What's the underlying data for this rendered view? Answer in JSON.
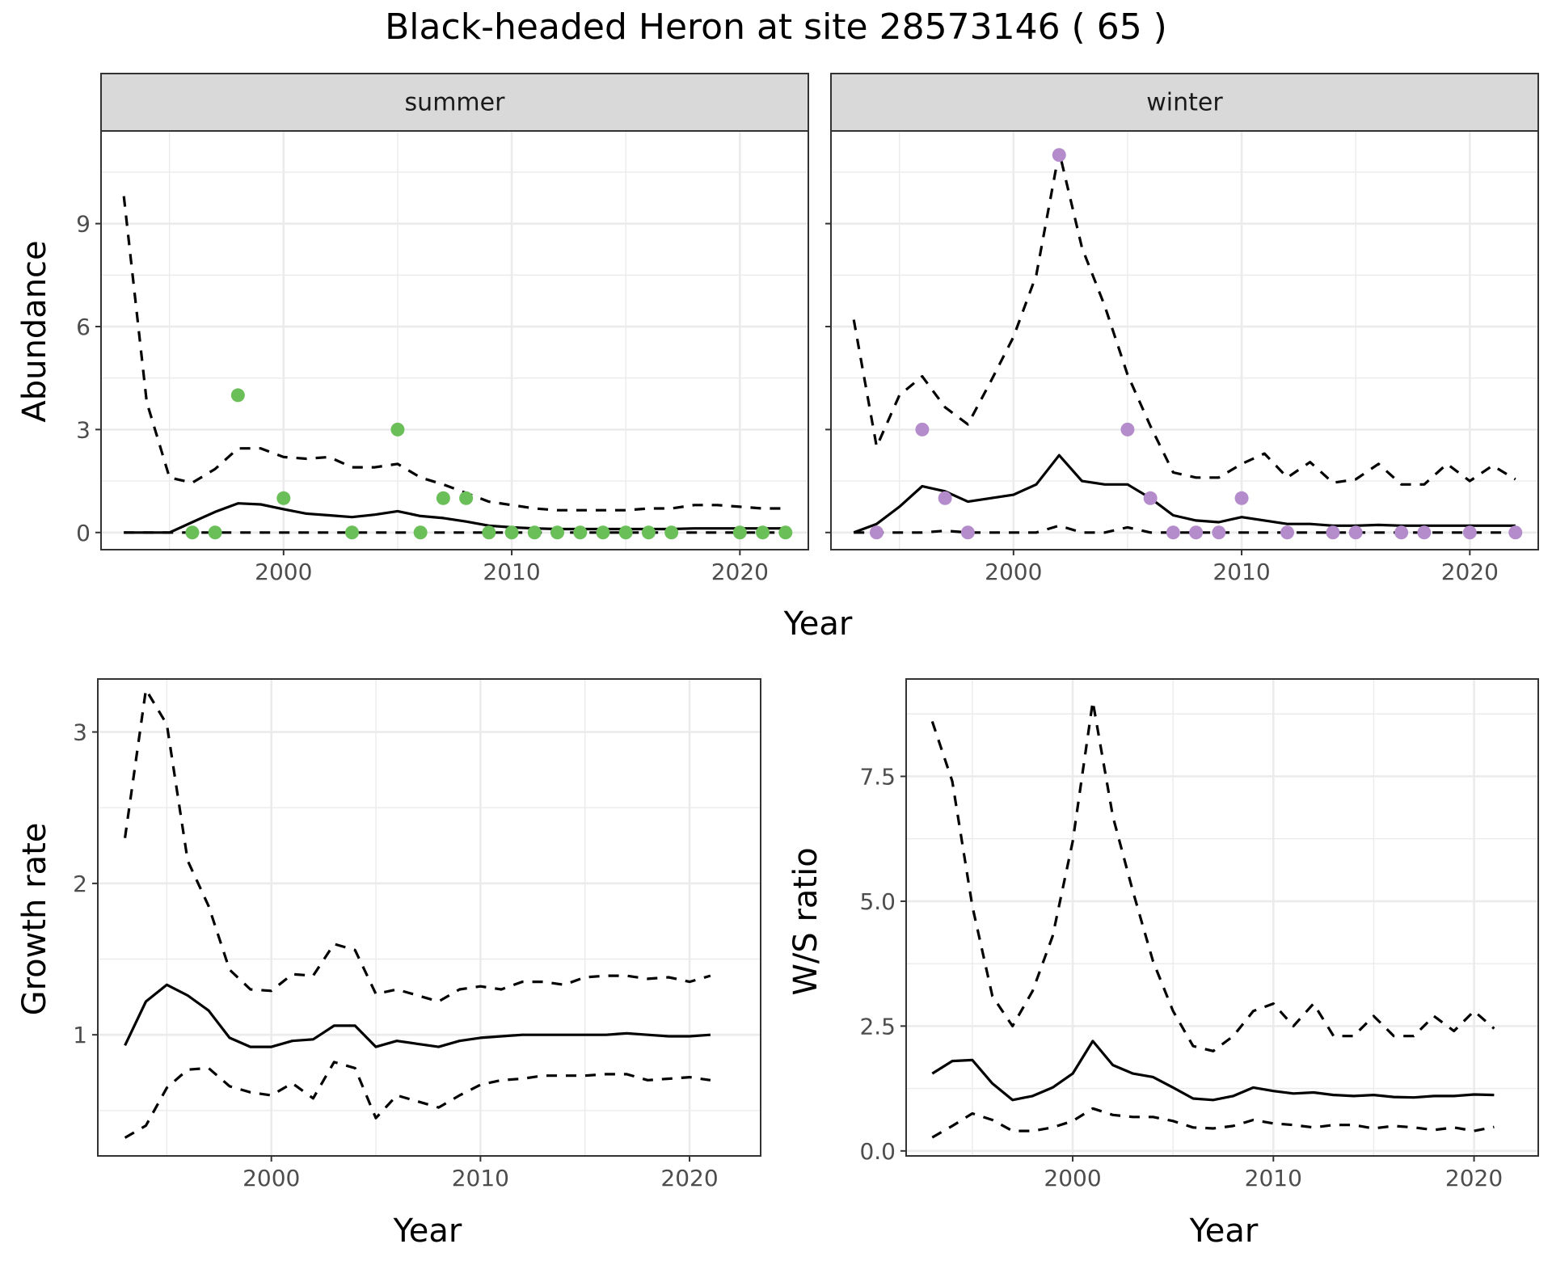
{
  "title": "Black-headed Heron at site 28573146 ( 65 )",
  "colors": {
    "summer_points": "#6bbf59",
    "winter_points": "#b48ccc",
    "lines": "#000000"
  },
  "chart_data": [
    {
      "id": "summer",
      "type": "line",
      "facet_label": "summer",
      "xlabel": "Year",
      "ylabel": "Abundance",
      "xlim": [
        1992,
        2023
      ],
      "ylim": [
        -0.5,
        11.7
      ],
      "xticks": [
        2000,
        2010,
        2020
      ],
      "yticks": [
        0,
        3,
        6,
        9
      ],
      "x": [
        1993,
        1994,
        1995,
        1996,
        1997,
        1998,
        1999,
        2000,
        2001,
        2002,
        2003,
        2004,
        2005,
        2006,
        2007,
        2008,
        2009,
        2010,
        2011,
        2012,
        2013,
        2014,
        2015,
        2016,
        2017,
        2018,
        2019,
        2020,
        2021,
        2022
      ],
      "series": [
        {
          "role": "estimate",
          "values": [
            0,
            0,
            0,
            0.3,
            0.6,
            0.85,
            0.82,
            0.68,
            0.55,
            0.5,
            0.45,
            0.52,
            0.62,
            0.48,
            0.42,
            0.32,
            0.2,
            0.15,
            0.12,
            0.1,
            0.1,
            0.1,
            0.1,
            0.1,
            0.1,
            0.12,
            0.12,
            0.12,
            0.12,
            0.12
          ]
        },
        {
          "role": "upper",
          "values": [
            9.8,
            3.8,
            1.6,
            1.45,
            1.85,
            2.45,
            2.45,
            2.2,
            2.15,
            2.2,
            1.9,
            1.9,
            2,
            1.6,
            1.4,
            1.15,
            0.9,
            0.8,
            0.7,
            0.65,
            0.65,
            0.65,
            0.65,
            0.7,
            0.7,
            0.8,
            0.8,
            0.75,
            0.7,
            0.7
          ]
        },
        {
          "role": "lower",
          "values": [
            0,
            0,
            0,
            0,
            0,
            0,
            0,
            0,
            0,
            0,
            0,
            0,
            0,
            0,
            0,
            0,
            0,
            0,
            0,
            0,
            0,
            0,
            0,
            0,
            0,
            0,
            0,
            0,
            0,
            0
          ]
        }
      ],
      "points": [
        {
          "x": 1996,
          "y": 0
        },
        {
          "x": 1997,
          "y": 0
        },
        {
          "x": 1998,
          "y": 4
        },
        {
          "x": 2000,
          "y": 1
        },
        {
          "x": 2003,
          "y": 0
        },
        {
          "x": 2005,
          "y": 3
        },
        {
          "x": 2006,
          "y": 0
        },
        {
          "x": 2007,
          "y": 1
        },
        {
          "x": 2008,
          "y": 1
        },
        {
          "x": 2009,
          "y": 0
        },
        {
          "x": 2010,
          "y": 0
        },
        {
          "x": 2011,
          "y": 0
        },
        {
          "x": 2012,
          "y": 0
        },
        {
          "x": 2013,
          "y": 0
        },
        {
          "x": 2014,
          "y": 0
        },
        {
          "x": 2015,
          "y": 0
        },
        {
          "x": 2016,
          "y": 0
        },
        {
          "x": 2017,
          "y": 0
        },
        {
          "x": 2020,
          "y": 0
        },
        {
          "x": 2021,
          "y": 0
        },
        {
          "x": 2022,
          "y": 0
        }
      ]
    },
    {
      "id": "winter",
      "type": "line",
      "facet_label": "winter",
      "xlabel": "Year",
      "ylabel": "Abundance",
      "xlim": [
        1992,
        2023
      ],
      "ylim": [
        -0.5,
        11.7
      ],
      "xticks": [
        2000,
        2010,
        2020
      ],
      "yticks": [
        0,
        3,
        6,
        9
      ],
      "x": [
        1993,
        1994,
        1995,
        1996,
        1997,
        1998,
        1999,
        2000,
        2001,
        2002,
        2003,
        2004,
        2005,
        2006,
        2007,
        2008,
        2009,
        2010,
        2011,
        2012,
        2013,
        2014,
        2015,
        2016,
        2017,
        2018,
        2019,
        2020,
        2021,
        2022
      ],
      "series": [
        {
          "role": "estimate",
          "values": [
            0,
            0.25,
            0.75,
            1.35,
            1.2,
            0.9,
            1,
            1.1,
            1.4,
            2.25,
            1.5,
            1.4,
            1.4,
            1,
            0.5,
            0.35,
            0.3,
            0.45,
            0.35,
            0.25,
            0.25,
            0.2,
            0.2,
            0.22,
            0.2,
            0.2,
            0.2,
            0.2,
            0.2,
            0.2
          ]
        },
        {
          "role": "upper",
          "values": [
            6.2,
            2.5,
            4,
            4.55,
            3.65,
            3.15,
            4.4,
            5.7,
            7.5,
            11.1,
            8.3,
            6.6,
            4.6,
            3.1,
            1.75,
            1.6,
            1.6,
            2,
            2.3,
            1.6,
            2.05,
            1.45,
            1.55,
            2,
            1.4,
            1.4,
            2,
            1.5,
            1.95,
            1.55
          ]
        },
        {
          "role": "lower",
          "values": [
            0,
            0,
            0,
            0,
            0.05,
            0,
            0,
            0,
            0,
            0.2,
            0,
            0,
            0.15,
            0,
            0,
            0,
            0,
            0,
            0,
            0,
            0,
            0,
            0,
            0,
            0,
            0,
            0,
            0,
            0,
            0
          ]
        }
      ],
      "points": [
        {
          "x": 1994,
          "y": 0
        },
        {
          "x": 1996,
          "y": 3
        },
        {
          "x": 1997,
          "y": 1
        },
        {
          "x": 1998,
          "y": 0
        },
        {
          "x": 2002,
          "y": 11
        },
        {
          "x": 2005,
          "y": 3
        },
        {
          "x": 2006,
          "y": 1
        },
        {
          "x": 2007,
          "y": 0
        },
        {
          "x": 2008,
          "y": 0
        },
        {
          "x": 2009,
          "y": 0
        },
        {
          "x": 2010,
          "y": 1
        },
        {
          "x": 2012,
          "y": 0
        },
        {
          "x": 2014,
          "y": 0
        },
        {
          "x": 2015,
          "y": 0
        },
        {
          "x": 2017,
          "y": 0
        },
        {
          "x": 2018,
          "y": 0
        },
        {
          "x": 2020,
          "y": 0
        },
        {
          "x": 2022,
          "y": 0
        }
      ]
    },
    {
      "id": "growth",
      "type": "line",
      "xlabel": "Year",
      "ylabel": "Growth rate",
      "xlim": [
        1991.7,
        2023.4
      ],
      "ylim": [
        0.2,
        3.35
      ],
      "xticks": [
        2000,
        2010,
        2020
      ],
      "yticks": [
        1,
        2,
        3
      ],
      "x": [
        1993,
        1994,
        1995,
        1996,
        1997,
        1998,
        1999,
        2000,
        2001,
        2002,
        2003,
        2004,
        2005,
        2006,
        2007,
        2008,
        2009,
        2010,
        2011,
        2012,
        2013,
        2014,
        2015,
        2016,
        2017,
        2018,
        2019,
        2020,
        2021
      ],
      "series": [
        {
          "role": "estimate",
          "values": [
            0.93,
            1.22,
            1.33,
            1.26,
            1.16,
            0.98,
            0.92,
            0.92,
            0.96,
            0.97,
            1.06,
            1.06,
            0.92,
            0.96,
            0.94,
            0.92,
            0.96,
            0.98,
            0.99,
            1,
            1,
            1,
            1,
            1,
            1.01,
            1,
            0.99,
            0.99,
            1
          ]
        },
        {
          "role": "upper",
          "values": [
            2.3,
            3.28,
            3.05,
            2.15,
            1.85,
            1.43,
            1.3,
            1.29,
            1.4,
            1.39,
            1.6,
            1.56,
            1.27,
            1.3,
            1.26,
            1.22,
            1.3,
            1.32,
            1.3,
            1.35,
            1.35,
            1.33,
            1.38,
            1.39,
            1.39,
            1.37,
            1.38,
            1.35,
            1.39
          ]
        },
        {
          "role": "lower",
          "values": [
            0.32,
            0.4,
            0.65,
            0.77,
            0.78,
            0.66,
            0.62,
            0.6,
            0.68,
            0.58,
            0.82,
            0.78,
            0.45,
            0.6,
            0.56,
            0.52,
            0.6,
            0.67,
            0.7,
            0.71,
            0.73,
            0.73,
            0.73,
            0.74,
            0.74,
            0.7,
            0.71,
            0.72,
            0.7
          ]
        }
      ]
    },
    {
      "id": "ratio",
      "type": "line",
      "xlabel": "Year",
      "ylabel": "W/S ratio",
      "xlim": [
        1991.7,
        2023.2
      ],
      "ylim": [
        -0.1,
        9.45
      ],
      "xticks": [
        2000,
        2010,
        2020
      ],
      "yticks": [
        0,
        2.5,
        5,
        7.5
      ],
      "ytick_labels": [
        "0.0",
        "2.5",
        "5.0",
        "7.5"
      ],
      "x": [
        1993,
        1994,
        1995,
        1996,
        1997,
        1998,
        1999,
        2000,
        2001,
        2002,
        2003,
        2004,
        2005,
        2006,
        2007,
        2008,
        2009,
        2010,
        2011,
        2012,
        2013,
        2014,
        2015,
        2016,
        2017,
        2018,
        2019,
        2020,
        2021
      ],
      "series": [
        {
          "role": "estimate",
          "values": [
            1.55,
            1.8,
            1.82,
            1.35,
            1.02,
            1.1,
            1.27,
            1.55,
            2.2,
            1.72,
            1.55,
            1.48,
            1.27,
            1.05,
            1.02,
            1.1,
            1.27,
            1.2,
            1.15,
            1.17,
            1.12,
            1.1,
            1.12,
            1.08,
            1.07,
            1.1,
            1.1,
            1.13,
            1.12
          ]
        },
        {
          "role": "upper",
          "values": [
            8.6,
            7.4,
            4.9,
            3.1,
            2.5,
            3.2,
            4.3,
            6.2,
            9,
            6.7,
            5.2,
            3.8,
            2.8,
            2.1,
            2,
            2.3,
            2.8,
            2.95,
            2.5,
            2.95,
            2.3,
            2.3,
            2.7,
            2.3,
            2.3,
            2.7,
            2.4,
            2.8,
            2.45
          ]
        },
        {
          "role": "lower",
          "values": [
            0.27,
            0.5,
            0.75,
            0.62,
            0.4,
            0.4,
            0.47,
            0.6,
            0.85,
            0.72,
            0.68,
            0.68,
            0.6,
            0.47,
            0.45,
            0.5,
            0.62,
            0.55,
            0.52,
            0.47,
            0.52,
            0.52,
            0.45,
            0.5,
            0.47,
            0.42,
            0.47,
            0.4,
            0.48
          ]
        }
      ]
    }
  ]
}
